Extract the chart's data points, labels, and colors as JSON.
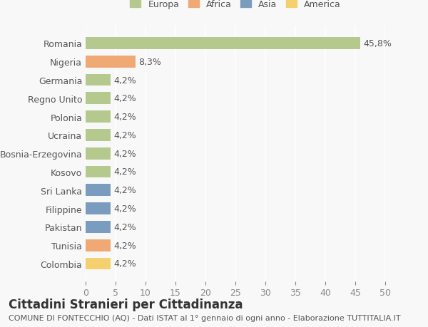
{
  "categories": [
    "Romania",
    "Nigeria",
    "Germania",
    "Regno Unito",
    "Polonia",
    "Ucraina",
    "Bosnia-Erzegovina",
    "Kosovo",
    "Sri Lanka",
    "Filippine",
    "Pakistan",
    "Tunisia",
    "Colombia"
  ],
  "values": [
    45.8,
    8.3,
    4.2,
    4.2,
    4.2,
    4.2,
    4.2,
    4.2,
    4.2,
    4.2,
    4.2,
    4.2,
    4.2
  ],
  "labels": [
    "45,8%",
    "8,3%",
    "4,2%",
    "4,2%",
    "4,2%",
    "4,2%",
    "4,2%",
    "4,2%",
    "4,2%",
    "4,2%",
    "4,2%",
    "4,2%",
    "4,2%"
  ],
  "colors": [
    "#b5c98e",
    "#f0a875",
    "#b5c98e",
    "#b5c98e",
    "#b5c98e",
    "#b5c98e",
    "#b5c98e",
    "#b5c98e",
    "#7a9dbf",
    "#7a9dbf",
    "#7a9dbf",
    "#f0a875",
    "#f5d06e"
  ],
  "legend_labels": [
    "Europa",
    "Africa",
    "Asia",
    "America"
  ],
  "legend_colors": [
    "#b5c98e",
    "#f0a875",
    "#7a9dbf",
    "#f5d06e"
  ],
  "xlim": [
    0,
    50
  ],
  "xticks": [
    0,
    5,
    10,
    15,
    20,
    25,
    30,
    35,
    40,
    45,
    50
  ],
  "title": "Cittadini Stranieri per Cittadinanza",
  "subtitle": "COMUNE DI FONTECCHIO (AQ) - Dati ISTAT al 1° gennaio di ogni anno - Elaborazione TUTTITALIA.IT",
  "background_color": "#f8f8f8",
  "grid_color": "#ffffff",
  "label_fontsize": 9,
  "title_fontsize": 12,
  "subtitle_fontsize": 8
}
